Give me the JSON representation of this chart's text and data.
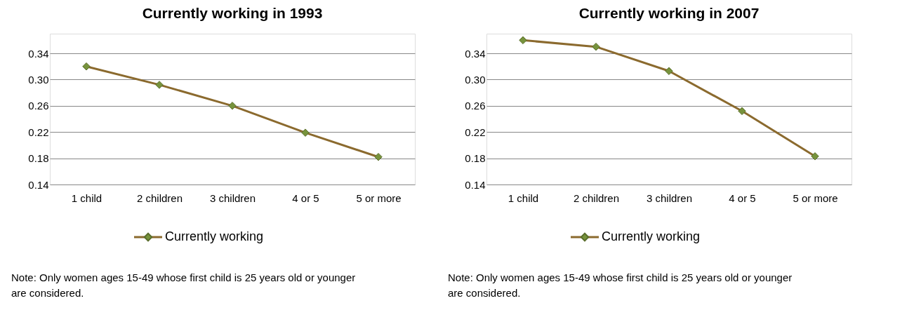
{
  "chart_data": [
    {
      "type": "line",
      "title": "Currently working in 1993",
      "categories": [
        "1 child",
        "2 children",
        "3 children",
        "4 or 5",
        "5 or more"
      ],
      "series": [
        {
          "name": "Currently working",
          "color": "#8b6a2e",
          "values": [
            0.32,
            0.292,
            0.26,
            0.219,
            0.182
          ]
        }
      ],
      "ylim": [
        0.14,
        0.37
      ],
      "yticks": [
        0.14,
        0.18,
        0.22,
        0.26,
        {
          "value": 0.3,
          "label": "0.30"
        },
        0.34
      ],
      "grid": "y",
      "legend": "bottom",
      "marker": "diamond",
      "annotations": [
        "Note: Only women ages 15-49 whose first child is 25 years old or younger are considered."
      ]
    },
    {
      "type": "line",
      "title": "Currently working in 2007",
      "categories": [
        "1 child",
        "2 children",
        "3 children",
        "4 or 5",
        "5 or more"
      ],
      "series": [
        {
          "name": "Currently working",
          "color": "#8b6a2e",
          "values": [
            0.36,
            0.35,
            0.313,
            0.252,
            0.183
          ]
        }
      ],
      "ylim": [
        0.14,
        0.37
      ],
      "yticks": [
        0.14,
        0.18,
        0.22,
        0.26,
        {
          "value": 0.3,
          "label": "0.30"
        },
        0.34
      ],
      "grid": "y",
      "legend": "bottom",
      "marker": "diamond",
      "annotations": [
        "Note: Only women ages 15-49 whose first child is 25 years old or younger are considered."
      ]
    }
  ]
}
